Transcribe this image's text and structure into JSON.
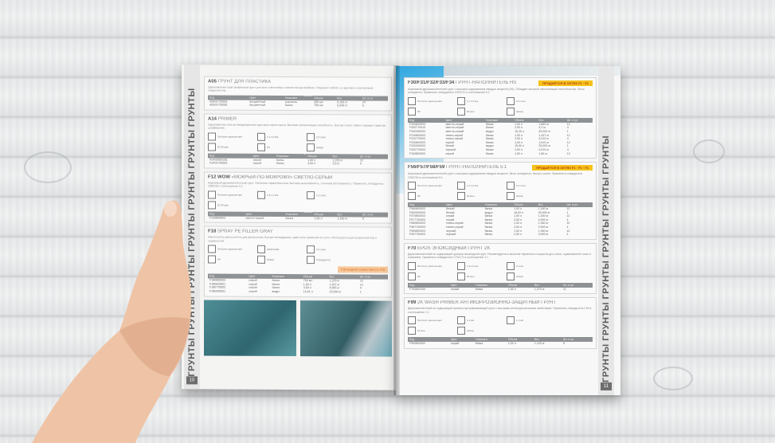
{
  "left_page": {
    "side_label": "ГРУНТЫ ГРУНТЫ ГРУНТЫ ГРУНТЫ ГРУНТЫ ГРУНТЫ ГРУНТЫ",
    "page_number": "10",
    "sections": [
      {
        "code": "A05",
        "title": "ГРУНТ ДЛЯ ПЛАСТИКА",
        "desc": "Однокомпонентный прозрачный грунт для всех пластиковых элементов автомобиля. Сохраняет гибкость и адгезию к пластиковым поверхностям.",
        "icons": [],
        "headers": [
          "Код",
          "Цвет",
          "Упаковка",
          "Объем",
          "Вес",
          "Шт. в уп."
        ],
        "rows": [
          [
            "A05S1700001",
            "бесцветный",
            "аэрозоль",
            "200 мл",
            "0,150 кг",
            "24"
          ],
          [
            "A05S1700001",
            "бесцветный",
            "банка",
            "750 мл",
            "0,649 кг",
            "6"
          ]
        ]
      },
      {
        "code": "A14",
        "title": "PRIMER",
        "desc": "Однокомпонентная антикоррозионная грунтовка серого цвета. Высокая заполняющая способность. Быстро сохнет. Имеет хорошие свойства шлифования.",
        "icons": [
          "Пистолет распыления",
          "1,4-1,6 мм",
          "2-3 слоя",
          "20-30 мин",
          "ИК",
          "Шлиф."
        ],
        "headers": [
          "Код",
          "Цвет",
          "Упаковка",
          "Объем",
          "Вес",
          "Шт. в уп."
        ],
        "rows": [
          [
            "A14S0001001",
            "серый",
            "банка",
            "1,00 л",
            "1,220 кг",
            "12"
          ],
          [
            "A14S1700001",
            "серый",
            "банка",
            "3,00 л",
            "3,6 кг",
            "4"
          ]
        ]
      },
      {
        "code": "F12 WOW",
        "title": "«МОКРЫЙ-ПО-МОКРОМУ» СВЕТЛО-СЕРЫЙ",
        "desc": "Акриловый двухкомпонентный грунт. Основные характеристики: быстрая высыхаемость, отличная растекаемость. Применять отвердитель C90/C91 в соотношении 5:1.",
        "icons": [
          "Пистолет распыления",
          "1,3-1,4 мм",
          "1-2 слоя",
          "20-30 мин"
        ],
        "headers": [
          "Код",
          "Цвет",
          "Упаковка",
          "Объем",
          "Вес",
          "Шт. в уп."
        ],
        "rows": [
          [
            "F120800003",
            "светло-серый",
            "банка",
            "1,00 л",
            "1,330 кг",
            "6"
          ]
        ]
      },
      {
        "code": "F18",
        "title": "SPRAY PE FILLER GRAY",
        "desc": "Наполнитель-распылитель для распыления. Быстро затвердевает, даже если применяется густо. Используется для устранения пор и неровностей.",
        "icons": [
          "Пистолет распыления",
          "Шпатлевка",
          "2-3 слоя",
          "ИК",
          "Шлиф.",
          "Отвердитель"
        ],
        "note": "F18 модулей совместимость F18",
        "headers": [
          "Код",
          "Цвет",
          "Упаковка",
          "Объем",
          "Вес",
          "Шт. в уп."
        ],
        "rows": [
          [
            "F180800003",
            "серый",
            "банка",
            "750 мл",
            "1,220 кг",
            "12"
          ],
          [
            "F180603001",
            "серый",
            "банка",
            "1,00 л",
            "1,507 кг",
            "12"
          ],
          [
            "F180770003",
            "серый",
            "банка",
            "3,00 л",
            "4,905 кг",
            "4"
          ],
          [
            "F180300001",
            "серый",
            "ведро",
            "15,61 л",
            "25,000 кг",
            "1"
          ]
        ]
      }
    ]
  },
  "right_page": {
    "side_label": "ГРУНТЫ ГРУНТЫ ГРУНТЫ ГРУНТЫ ГРУНТЫ ГРУНТЫ",
    "page_number": "11",
    "stickers": [
      "ПРОДАЁТСЯ В СЕТЯХ F1 · F1",
      "ПРОДАЁТСЯ В СЕТЯХ F1 · F1 · F1"
    ],
    "sections": [
      {
        "code": "F30/F31/F32/F33/F34",
        "title": "ГРУНТ-НАПОЛНИТЕЛЬ HS",
        "desc": "Акриловый двухкомпонентный грунт с высоким содержанием твердых веществ (HS). Обладает высокой наполняющей способностью. Легко шлифуется. Применять отвердитель C90/C91 в соотношении 5:1.",
        "icons": [
          "Пистолет распыления",
          "1,7-1,9 мм",
          "2-3 слоя",
          "ИК",
          "60 мин",
          "Шлиф."
        ],
        "headers": [
          "Код",
          "Цвет",
          "Упаковка",
          "Объем",
          "Вес",
          "Шт. в уп."
        ],
        "rows": [
          [
            "F300800003",
            "светло-серый",
            "банка",
            "1,00 л",
            "1,663 кг",
            "12"
          ],
          [
            "F300770010",
            "светло-серый",
            "банка",
            "2,50 л",
            "4,2 кг",
            "4"
          ],
          [
            "F300350003",
            "светло-серый",
            "ведро",
            "15,25 л",
            "25,000 кг",
            "1"
          ],
          [
            "F310800003",
            "темно-серый",
            "банка",
            "1,00 л",
            "1,437 кг",
            "12"
          ],
          [
            "F310770003",
            "темно-серый",
            "банка",
            "2,50 л",
            "4,013 кг",
            "4"
          ],
          [
            "F320800003",
            "серый",
            "банка",
            "1,00 л",
            "1,610 кг",
            "12"
          ],
          [
            "F330300003",
            "белый",
            "ведро",
            "15,50 л",
            "25,000 кг",
            "1"
          ],
          [
            "F320770003",
            "черный",
            "банка",
            "2,50 л",
            "4,010 кг",
            "4"
          ],
          [
            "F340800003",
            "серый",
            "банка",
            "1,00 л",
            "1,65 кг",
            "12"
          ]
        ]
      },
      {
        "code": "F56/F57/F58/F59",
        "title": "ГРУНТ-НАПОЛНИТЕЛЬ 5:1",
        "desc": "Акриловый двухкомпонентный грунт с высоким содержанием твердых веществ. Легко шлифуется, быстро сохнет. Применять отвердитель C90/C91 в соотношении 5:1.",
        "icons": [
          "Пистолет распыления",
          "1,4-1,6 мм",
          "2-3 слоя",
          "ИК",
          "60 мин",
          "Шлиф."
        ],
        "headers": [
          "Код",
          "Цвет",
          "Упаковка",
          "Объем",
          "Вес",
          "Шт. в уп."
        ],
        "rows": [
          [
            "F560800003",
            "белый",
            "банка",
            "1,00 л",
            "1,160 кг",
            "12"
          ],
          [
            "F562500003",
            "белый",
            "ведро",
            "18,00 л",
            "25,000 кг",
            "1"
          ],
          [
            "F570800003",
            "серый",
            "банка",
            "1,00 л",
            "1,400 кг",
            "12"
          ],
          [
            "F577700003",
            "серый",
            "банка",
            "2,50 л",
            "4,000 кг",
            "4"
          ],
          [
            "F580800003",
            "темно-серый",
            "банка",
            "1,00 л",
            "1,360 кг",
            "12"
          ],
          [
            "F587700003",
            "темно-серый",
            "банка",
            "2,50 л",
            "3,900 кг",
            "4"
          ],
          [
            "F590800003",
            "черный",
            "банка",
            "1,00 л",
            "1,360 кг",
            "12"
          ],
          [
            "F597700003",
            "черный",
            "банка",
            "2,50 л",
            "3,900 кг",
            "4"
          ]
        ]
      },
      {
        "code": "F70",
        "title": "EPOS ЭПОКСИДНЫЙ ГРУНТ 2K",
        "desc": "Двухкомпонентный не содержащий хромата эпоксидный грунт. Рекомендуется в качестве первичного покрытия для стали, оцинкованной стали и алюминия. Применять отвердитель C70/C71 в соотношении 1:1.",
        "icons": [
          "Пистолет распыления",
          "1,3-1,6 мм",
          "2 слоя",
          "ИК",
          "60 мин",
          "Шлиф."
        ],
        "headers": [
          "Код",
          "Цвет",
          "Упаковка",
          "Объем",
          "Вес",
          "Шт. в уп."
        ],
        "rows": [
          [
            "F700800100",
            "серый",
            "банка",
            "1,00 л",
            "1,370 кг",
            "11"
          ]
        ]
      },
      {
        "code": "F99",
        "title": "2K WASH PRIMER АНТИКОРРОЗИОННО-ЗАЩИТНЫЙ ГРУНТ",
        "desc": "Двухкомпонентный не содержащий хромата протравливающий грунт с высокими антикоррозионными свойствами. Применять отвердитель C99 в соотношении 1:1.",
        "icons": [
          "Пистолет распыления",
          "1,3 мм",
          "1 слой",
          "15 мин",
          "Шлиф."
        ],
        "headers": [
          "Код",
          "Цвет",
          "Упаковка",
          "Объем",
          "Вес",
          "Шт. в уп."
        ],
        "rows": [
          [
            "F990800002",
            "серый",
            "банка",
            "1,00 л",
            "1,100 кг",
            "6"
          ]
        ]
      }
    ]
  },
  "colors": {
    "wood": "#eceeee",
    "skin": "#f0c4a6",
    "header_gray": "#8f9294",
    "sticker": "#f5c21a",
    "accent_blue": "#2ea7e0"
  }
}
